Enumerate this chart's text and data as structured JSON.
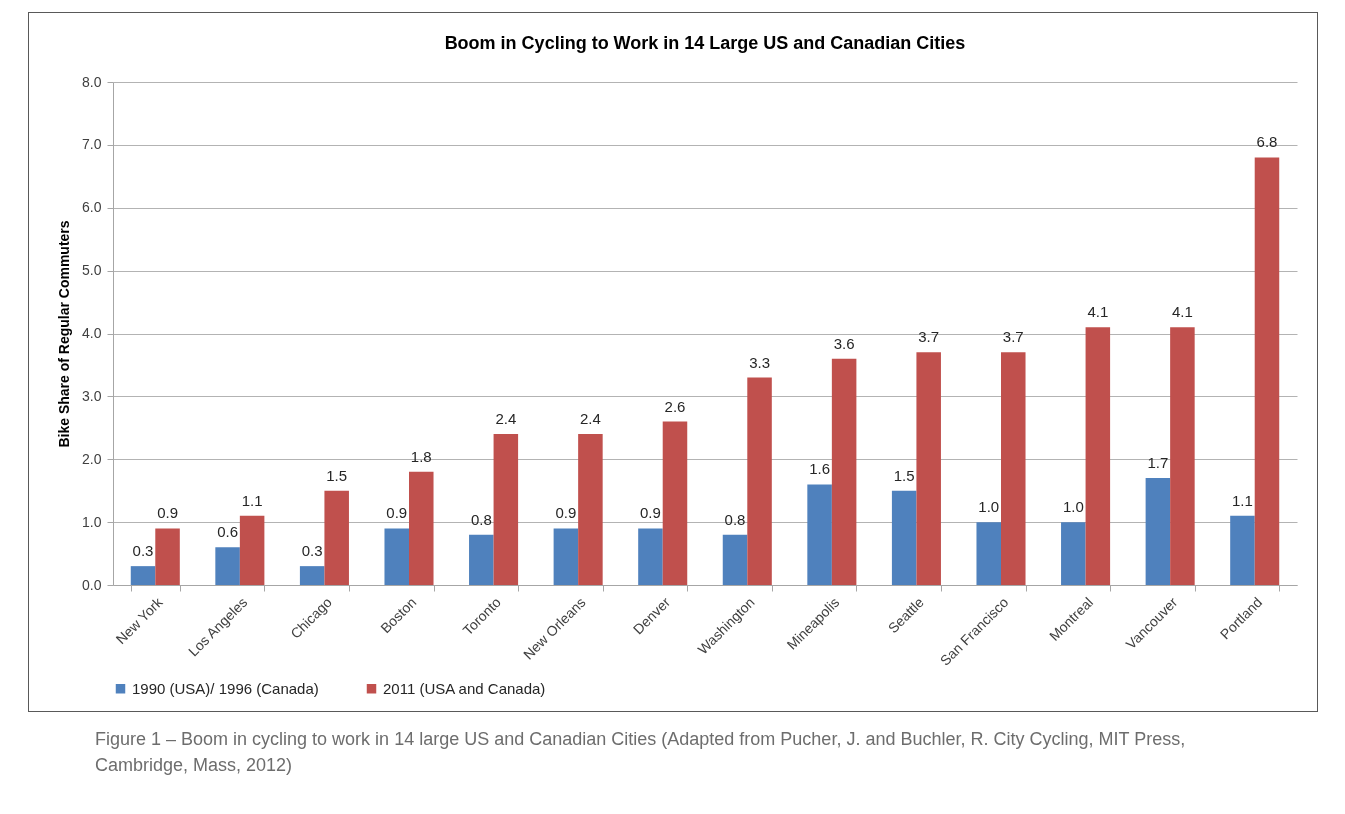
{
  "chart_data": {
    "type": "bar",
    "title": "Boom in Cycling to Work in 14 Large US and Canadian Cities",
    "ylabel": "Bike Share of Regular Commuters",
    "categories": [
      "New York",
      "Los Angeles",
      "Chicago",
      "Boston",
      "Toronto",
      "New Orleans",
      "Denver",
      "Washington",
      "Mineapolis",
      "Seattle",
      "San Francisco",
      "Montreal",
      "Vancouver",
      "Portland"
    ],
    "series": [
      {
        "name": "1990 (USA)/ 1996 (Canada)",
        "color": "#4f81bd",
        "values": [
          0.3,
          0.6,
          0.3,
          0.9,
          0.8,
          0.9,
          0.9,
          0.8,
          1.6,
          1.5,
          1.0,
          1.0,
          1.7,
          1.1
        ],
        "value_labels": [
          "0.3",
          "0.6",
          "0.3",
          "0.9",
          "0.8",
          "0.9",
          "0.9",
          "0.8",
          "1.6",
          "1.5",
          "1.0",
          "1.0",
          "1.7",
          "1.1"
        ]
      },
      {
        "name": "2011 (USA and Canada)",
        "color": "#c0504d",
        "values": [
          0.9,
          1.1,
          1.5,
          1.8,
          2.4,
          2.4,
          2.6,
          3.3,
          3.6,
          3.7,
          3.7,
          4.1,
          4.1,
          6.8
        ],
        "value_labels": [
          "0.9",
          "1.1",
          "1.5",
          "1.8",
          "2.4",
          "2.4",
          "2.6",
          "3.3",
          "3.6",
          "3.7",
          "3.7",
          "4.1",
          "4.1",
          "6.8"
        ]
      }
    ],
    "ylim": [
      0,
      8
    ],
    "yticks": [
      {
        "value": 0,
        "label": "0.0"
      },
      {
        "value": 1,
        "label": "1.0"
      },
      {
        "value": 2,
        "label": "2.0"
      },
      {
        "value": 3,
        "label": "3.0"
      },
      {
        "value": 4,
        "label": "4.0"
      },
      {
        "value": 5,
        "label": "5.0"
      },
      {
        "value": 6,
        "label": "6.0"
      },
      {
        "value": 7,
        "label": "7.0"
      },
      {
        "value": 8,
        "label": "8.0"
      }
    ],
    "grid": "y",
    "legend": "bottom",
    "annotations": [
      "Figure 1 – Boom in cycling to work in 14 large US and Canadian Cities (Adapted from Pucher, J. and Buchler, R. City Cycling, MIT Press, Cambridge, Mass, 2012)"
    ]
  }
}
